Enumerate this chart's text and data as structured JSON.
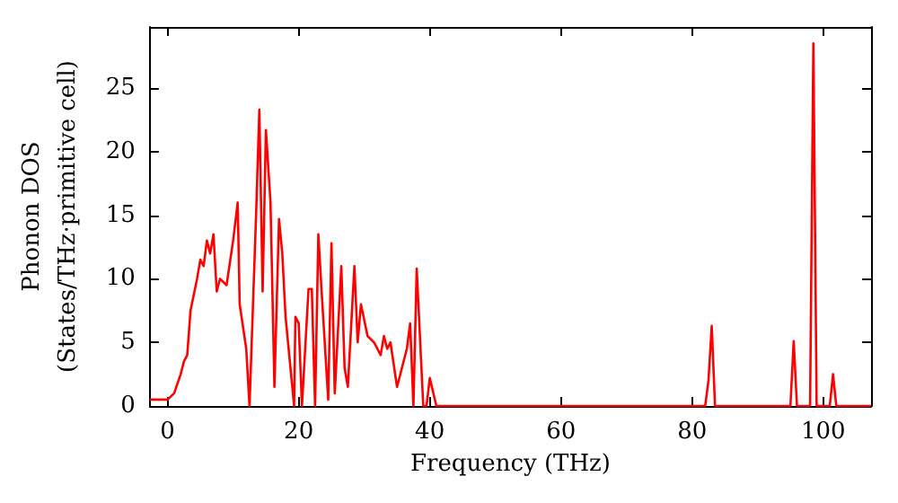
{
  "chart_data": {
    "type": "line",
    "xlabel": "Frequency (THz)",
    "ylabel": "Phonon DOS\n(States/THz·primitive cell)",
    "xlim": [
      -2.7,
      107.3
    ],
    "ylim": [
      0,
      29.8
    ],
    "xticks": [
      0,
      20,
      40,
      60,
      80,
      100
    ],
    "yticks": [
      0,
      5,
      10,
      15,
      20,
      25
    ],
    "grid": false,
    "marker": "none",
    "line_style": "solid",
    "series": [
      {
        "color": "#ff0000",
        "x": [
          -2.7,
          -1,
          0,
          1,
          2,
          2.5,
          3,
          3.5,
          4.5,
          5,
          5.5,
          6,
          6.5,
          7,
          7.5,
          8,
          9,
          10,
          10.7,
          11,
          12,
          12.5,
          13.5,
          14,
          14.5,
          15,
          15.7,
          16.3,
          17,
          17.5,
          18,
          19.3,
          19.5,
          20,
          20.5,
          21.5,
          22,
          22.5,
          23,
          23.5,
          24.5,
          25,
          25.5,
          26.5,
          27,
          27.5,
          28.5,
          29,
          29.5,
          30.5,
          31.5,
          32.5,
          33,
          33.5,
          34,
          35,
          36.5,
          37,
          37.5,
          38,
          39,
          39.5,
          40,
          41,
          82,
          82.5,
          83,
          83.5,
          95,
          95.5,
          96,
          98,
          98.5,
          99,
          101,
          101.5,
          102,
          107.3
        ],
        "values": [
          0.5,
          0.5,
          0.5,
          1,
          2.5,
          3.5,
          4,
          7.5,
          10,
          11.5,
          11,
          13,
          12,
          13.5,
          9,
          10,
          9.5,
          13,
          16,
          8,
          4.5,
          0,
          15,
          23.3,
          9,
          21.7,
          16,
          1.5,
          14.7,
          12,
          7,
          0,
          7,
          6.5,
          0,
          9.2,
          9.2,
          0,
          13.5,
          9,
          0.5,
          12.8,
          1,
          11,
          3,
          1.5,
          11,
          5,
          8,
          5.5,
          5,
          4,
          5.5,
          4.5,
          5,
          1.5,
          4.5,
          6.5,
          0,
          10.8,
          0,
          0,
          2.2,
          0,
          0,
          2,
          6.3,
          0,
          0,
          5.1,
          0,
          0,
          28.5,
          0,
          0,
          2.5,
          0,
          0
        ]
      }
    ]
  }
}
